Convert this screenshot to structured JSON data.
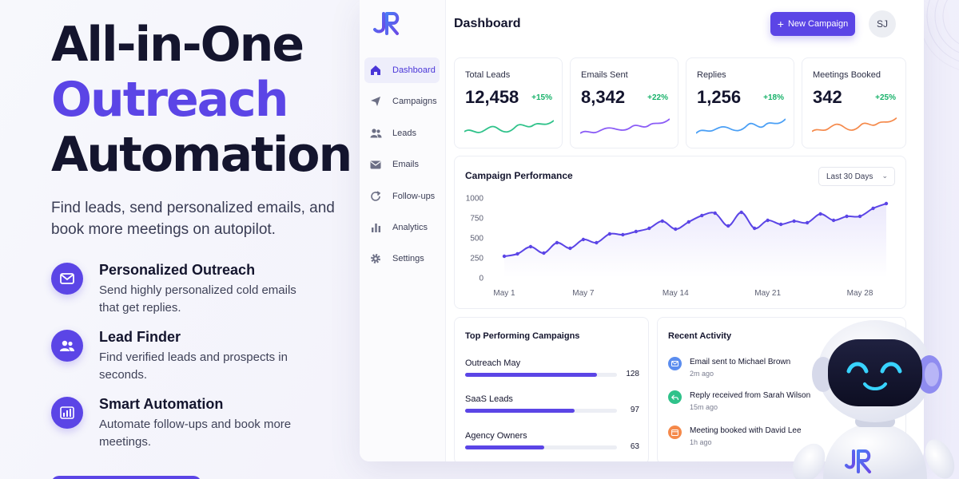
{
  "hero": {
    "title_line1": "All-in-One",
    "title_line2": "Outreach",
    "title_line3": "Automation",
    "subtitle": "Find leads, send personalized emails, and book more meetings on autopilot.",
    "features": [
      {
        "title": "Personalized Outreach",
        "desc": "Send highly personalized cold emails that get replies.",
        "icon": "envelope-icon"
      },
      {
        "title": "Lead Finder",
        "desc": "Find verified leads and prospects in seconds.",
        "icon": "users-icon"
      },
      {
        "title": "Smart Automation",
        "desc": "Automate follow-ups and book more meetings.",
        "icon": "bar-chart-icon"
      }
    ]
  },
  "app": {
    "logo_text": "JR",
    "sidebar": {
      "items": [
        {
          "label": "Dashboard",
          "icon": "home-icon",
          "active": true
        },
        {
          "label": "Campaigns",
          "icon": "send-icon"
        },
        {
          "label": "Leads",
          "icon": "users-icon"
        },
        {
          "label": "Emails",
          "icon": "mail-icon"
        },
        {
          "label": "Follow-ups",
          "icon": "refresh-icon"
        },
        {
          "label": "Analytics",
          "icon": "bar-chart-icon"
        },
        {
          "label": "Settings",
          "icon": "gear-icon"
        }
      ]
    },
    "header": {
      "title": "Dashboard",
      "new_campaign_label": "New Campaign",
      "avatar_initials": "SJ"
    },
    "stats": [
      {
        "label": "Total Leads",
        "value": "12,458",
        "delta": "+15%",
        "color": "#2fc28a"
      },
      {
        "label": "Emails Sent",
        "value": "8,342",
        "delta": "+22%",
        "color": "#8b5cf6"
      },
      {
        "label": "Replies",
        "value": "1,256",
        "delta": "+18%",
        "color": "#4a9ff5"
      },
      {
        "label": "Meetings Booked",
        "value": "342",
        "delta": "+25%",
        "color": "#f5894a"
      }
    ],
    "performance": {
      "title": "Campaign Performance",
      "range_label": "Last 30 Days"
    },
    "top_campaigns": {
      "title": "Top Performing Campaigns",
      "rows": [
        {
          "name": "Outreach May",
          "value": "128",
          "fraction": 0.87
        },
        {
          "name": "SaaS Leads",
          "value": "97",
          "fraction": 0.72
        },
        {
          "name": "Agency Owners",
          "value": "63",
          "fraction": 0.52
        }
      ]
    },
    "activity": {
      "title": "Recent Activity",
      "items": [
        {
          "text": "Email sent to Michael Brown",
          "time": "2m ago",
          "color": "#5b8def",
          "icon": "mail-icon"
        },
        {
          "text": "Reply received from Sarah Wilson",
          "time": "15m ago",
          "color": "#2fc28a",
          "icon": "reply-icon"
        },
        {
          "text": "Meeting booked with David Lee",
          "time": "1h ago",
          "color": "#f5894a",
          "icon": "calendar-icon"
        }
      ]
    }
  },
  "chart_data": {
    "type": "line",
    "title": "Campaign Performance",
    "xlabel": "",
    "ylabel": "",
    "x_ticks": [
      "May 1",
      "May 7",
      "May 14",
      "May 21",
      "May 28"
    ],
    "y_ticks": [
      0,
      250,
      500,
      750,
      1000
    ],
    "ylim": [
      0,
      1000
    ],
    "grid": false,
    "series": [
      {
        "color": "#5b45e6",
        "x": [
          1,
          2,
          3,
          4,
          5,
          6,
          7,
          8,
          9,
          10,
          11,
          12,
          13,
          14,
          15,
          16,
          17,
          18,
          19,
          20,
          21,
          22,
          23,
          24,
          25,
          26,
          27,
          28,
          29,
          30
        ],
        "values": [
          270,
          300,
          390,
          310,
          440,
          370,
          480,
          440,
          550,
          540,
          580,
          620,
          710,
          610,
          700,
          780,
          810,
          650,
          820,
          620,
          720,
          670,
          710,
          690,
          800,
          720,
          770,
          770,
          870,
          930
        ]
      }
    ]
  }
}
